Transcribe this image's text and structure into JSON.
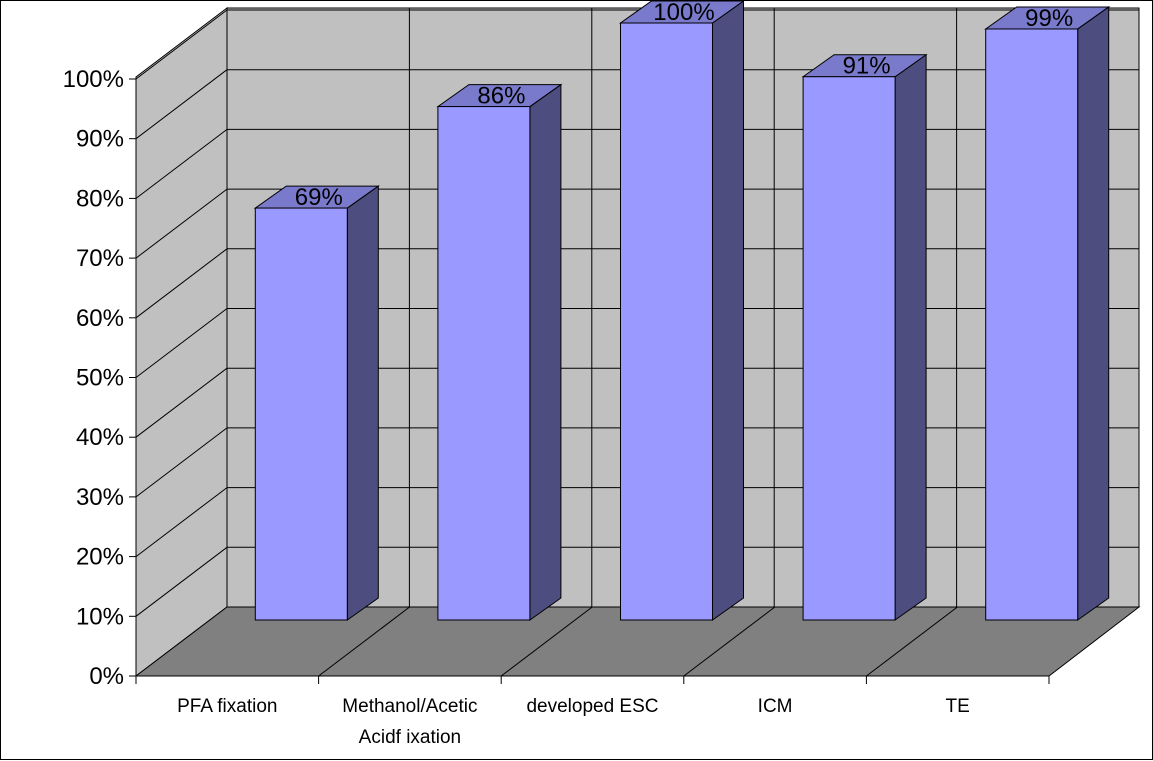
{
  "chart_data": {
    "type": "bar",
    "style": "3d-column",
    "categories": [
      [
        "PFA  fixation"
      ],
      [
        "Methanol/Acetic",
        "Acidf ixation"
      ],
      [
        "developed ESC"
      ],
      [
        "ICM"
      ],
      [
        "TE"
      ]
    ],
    "values": [
      69,
      86,
      100,
      91,
      99
    ],
    "data_labels": [
      "69%",
      "86%",
      "100%",
      "91%",
      "99%"
    ],
    "ylim": [
      0,
      100
    ],
    "y_ticks": [
      0,
      10,
      20,
      30,
      40,
      50,
      60,
      70,
      80,
      90,
      100
    ],
    "y_tick_labels": [
      "0%",
      "10%",
      "20%",
      "30%",
      "40%",
      "50%",
      "60%",
      "70%",
      "80%",
      "90%",
      "100%"
    ],
    "title": "",
    "xlabel": "",
    "ylabel": "",
    "grid": true,
    "legend": "none",
    "colors": {
      "bar_front": "#9999ff",
      "bar_side": "#4d4d80",
      "bar_top": "#7a7acc",
      "back_wall": "#c0c0c0",
      "side_wall": "#c0c0c0",
      "floor": "#808080",
      "grid": "#000000"
    }
  }
}
